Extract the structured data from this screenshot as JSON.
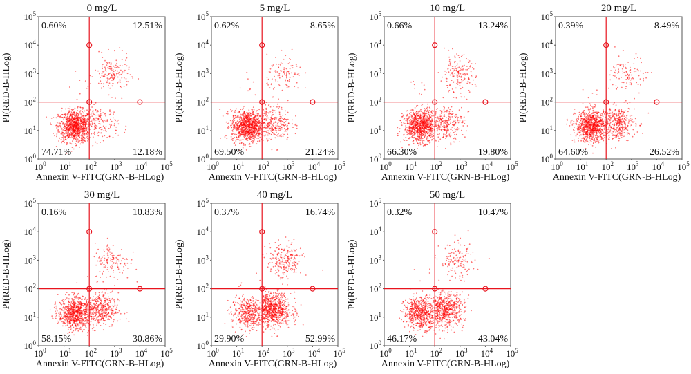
{
  "chart_data": [
    {
      "type": "scatter",
      "title": "0 mg/L",
      "quadrants": {
        "upper_left": "0.60%",
        "upper_right": "12.51%",
        "lower_left": "74.71%",
        "lower_right": "12.18%"
      }
    },
    {
      "type": "scatter",
      "title": "5 mg/L",
      "quadrants": {
        "upper_left": "0.62%",
        "upper_right": "8.65%",
        "lower_left": "69.50%",
        "lower_right": "21.24%"
      }
    },
    {
      "type": "scatter",
      "title": "10 mg/L",
      "quadrants": {
        "upper_left": "0.66%",
        "upper_right": "13.24%",
        "lower_left": "66.30%",
        "lower_right": "19.80%"
      }
    },
    {
      "type": "scatter",
      "title": "20 mg/L",
      "quadrants": {
        "upper_left": "0.39%",
        "upper_right": "8.49%",
        "lower_left": "64.60%",
        "lower_right": "26.52%"
      }
    },
    {
      "type": "scatter",
      "title": "30 mg/L",
      "quadrants": {
        "upper_left": "0.16%",
        "upper_right": "10.83%",
        "lower_left": "58.15%",
        "lower_right": "30.86%"
      }
    },
    {
      "type": "scatter",
      "title": "40 mg/L",
      "quadrants": {
        "upper_left": "0.37%",
        "upper_right": "16.74%",
        "lower_left": "29.90%",
        "lower_right": "52.99%"
      }
    },
    {
      "type": "scatter",
      "title": "50 mg/L",
      "quadrants": {
        "upper_left": "0.32%",
        "upper_right": "10.47%",
        "lower_left": "46.17%",
        "lower_right": "43.04%"
      }
    }
  ],
  "axes": {
    "xlabel": "Annexin V-FITC(GRN-B-HLog)",
    "ylabel": "PI(RED-B-HLog)",
    "scale": "log",
    "xlim": [
      1,
      100000
    ],
    "ylim": [
      1,
      100000
    ],
    "tick_base": "10",
    "tick_exponents": [
      "0",
      "1",
      "2",
      "3",
      "4",
      "5"
    ],
    "quadrant_gate": {
      "x": 100,
      "y": 100
    },
    "gate_handles": [
      [
        100,
        10000
      ],
      [
        100,
        100
      ],
      [
        10000,
        100
      ]
    ],
    "grid": false
  },
  "colors": {
    "points": "#ff0000",
    "gate": "#e8141e",
    "frame": "#555555"
  }
}
